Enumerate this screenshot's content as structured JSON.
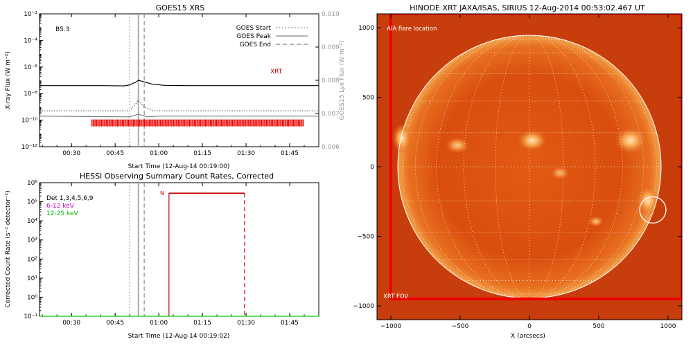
{
  "chart_data": [
    {
      "type": "line",
      "title": "GOES15 XRS",
      "xlabel": "Start Time (12-Aug-14 00:19:00)",
      "ylabel": "X-ray Flux (W m⁻²)",
      "y2label": "GOES15 Lyx Flux (W m⁻²)",
      "x_ticks": [
        "00:30",
        "00:45",
        "01:00",
        "01:15",
        "01:30",
        "01:45"
      ],
      "x_tick_minutes": [
        30,
        45,
        60,
        75,
        90,
        105
      ],
      "xlim_minutes": [
        19,
        115
      ],
      "y_scale": "log",
      "ylim_exp": [
        -12,
        -2
      ],
      "y_tick_exps": [
        -12,
        -10,
        -8,
        -6,
        -4,
        -2
      ],
      "y2lim": [
        0.006,
        0.01
      ],
      "y2_ticks": [
        "0.006",
        "0.007",
        "0.008",
        "0.009",
        "0.010"
      ],
      "y2_tick_values": [
        0.006,
        0.007,
        0.008,
        0.009,
        0.01
      ],
      "class_label": "B5.3",
      "legend": [
        {
          "label": "GOES Start",
          "style": "dotted"
        },
        {
          "label": "GOES Peak",
          "style": "solid"
        },
        {
          "label": "GOES End",
          "style": "dashed"
        }
      ],
      "markers_minutes": {
        "start": 50,
        "peak": 53,
        "end": 55
      },
      "series": [
        {
          "color": "#000000",
          "x": [
            19,
            40,
            48,
            50,
            52,
            53,
            55,
            58,
            62,
            70,
            90,
            115
          ],
          "y_exp": [
            -7.4,
            -7.4,
            -7.42,
            -7.35,
            -7.15,
            -7.0,
            -7.12,
            -7.3,
            -7.38,
            -7.4,
            -7.4,
            -7.4
          ]
        },
        {
          "color": "#555555",
          "style": "dotted",
          "x": [
            19,
            50,
            52,
            53,
            55,
            58,
            115
          ],
          "y_exp": [
            -9.3,
            -9.3,
            -8.8,
            -8.5,
            -9.0,
            -9.3,
            -9.3
          ]
        },
        {
          "color": "#808080",
          "x": [
            19,
            30,
            50,
            53,
            56,
            60,
            115
          ],
          "y_exp": [
            -9.7,
            -9.72,
            -9.75,
            -9.55,
            -9.75,
            -9.7,
            -9.7
          ]
        }
      ],
      "annotation": "XRT",
      "annotation_color": "#cc0000",
      "xrt_bar": {
        "x_start_minutes": 37,
        "x_end_minutes": 110,
        "color": "#ee0000"
      }
    },
    {
      "type": "line",
      "title": "HESSI Observing Summary Count Rates, Corrected",
      "xlabel": "Start Time (12-Aug-14 00:19:02)",
      "ylabel": "Corrected Count Rate (s⁻¹ detector⁻¹)",
      "x_ticks": [
        "00:30",
        "00:45",
        "01:00",
        "01:15",
        "01:30",
        "01:45"
      ],
      "x_tick_minutes": [
        30,
        45,
        60,
        75,
        90,
        105
      ],
      "xlim_minutes": [
        19,
        115
      ],
      "y_scale": "log",
      "ylim_exp": [
        -1,
        6
      ],
      "y_tick_exps": [
        -1,
        0,
        1,
        2,
        3,
        4,
        5,
        6
      ],
      "legend": [
        {
          "label": "Det 1,3,4,5,6,9",
          "color": "#000000"
        },
        {
          "label": "6-12 keV",
          "color": "#cc00cc"
        },
        {
          "label": "12-25 keV",
          "color": "#00cc00"
        }
      ],
      "markers_minutes": {
        "start": 50,
        "peak": 53,
        "end": 55
      },
      "night_label": "N",
      "night_minutes": [
        63.5,
        89.5
      ],
      "night_color": "#cc0000",
      "series": [
        {
          "name": "12-25 keV",
          "color": "#00cc00",
          "x": [
            19,
            115
          ],
          "y_exp": [
            -1,
            -1
          ]
        }
      ]
    },
    {
      "type": "heatmap",
      "title": "HINODE XRT JAXA/ISAS, SIRIUS 12-Aug-2014 00:53:02.467 UT",
      "xlabel": "X (arcsecs)",
      "ylabel": "",
      "xlim": [
        -1100,
        1100
      ],
      "ylim": [
        -1100,
        1100
      ],
      "x_ticks": [
        -1000,
        -500,
        0,
        500,
        1000
      ],
      "y_ticks": [
        -1000,
        -500,
        0,
        500,
        1000
      ],
      "solar_radius_arcsec": 950,
      "grid": true,
      "aia_label": "AIA flare location",
      "aia_flare_arcsec": [
        890,
        -310
      ],
      "aia_circle_radius_arcsec": 95,
      "fov_label": "XRT FOV",
      "fov_color": "#ee0000",
      "fov_arcsec": {
        "x": [
          -1000,
          1100
        ],
        "y": [
          -950,
          1100
        ]
      }
    }
  ]
}
